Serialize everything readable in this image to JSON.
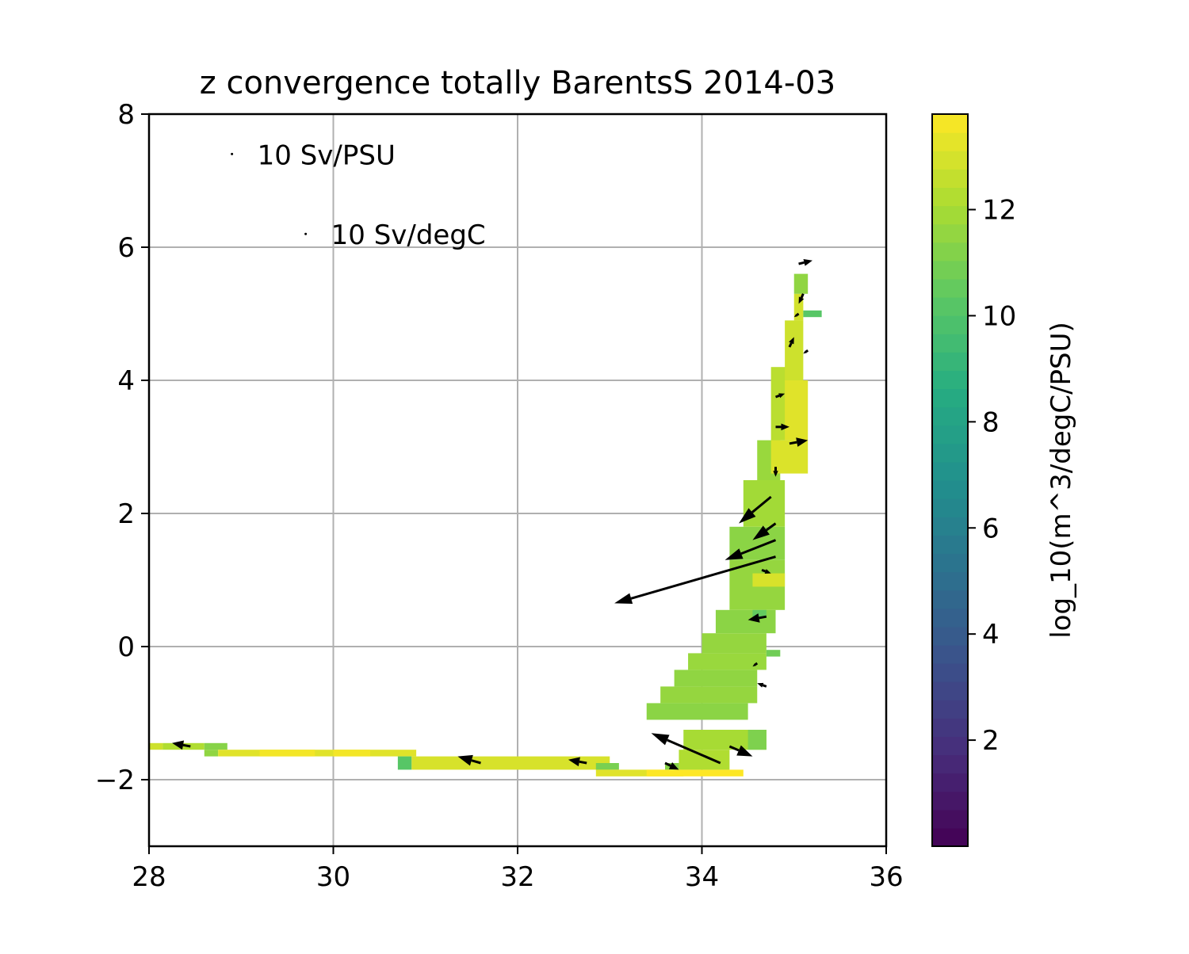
{
  "chart_data": {
    "type": "heatmap",
    "title": "z convergence totally BarentsS 2014-03",
    "xlabel": "",
    "ylabel": "",
    "xlim": [
      28,
      36
    ],
    "ylim": [
      -3,
      8
    ],
    "xticks": [
      "28",
      "30",
      "32",
      "34",
      "36"
    ],
    "yticks": [
      "8",
      "6",
      "4",
      "2",
      "0",
      "−2"
    ],
    "grid": true,
    "colorbar": {
      "label": "log_10(m^3/degC/PSU)",
      "range": [
        0,
        13.8
      ],
      "ticks": [
        "12",
        "10",
        "8",
        "6",
        "4",
        "2"
      ],
      "colormap": "viridis"
    },
    "quiver_keys": [
      {
        "label": "10 Sv/PSU",
        "x": 28.9,
        "y": 7.4
      },
      {
        "label": "10 Sv/degC",
        "x": 29.7,
        "y": 6.2
      }
    ],
    "cells": [
      [
        28.0,
        28.15,
        -1.55,
        -1.45,
        12.8
      ],
      [
        28.15,
        28.6,
        -1.55,
        -1.45,
        12.2
      ],
      [
        28.6,
        28.85,
        -1.55,
        -1.45,
        11.3
      ],
      [
        28.6,
        28.75,
        -1.65,
        -1.55,
        11.5
      ],
      [
        28.75,
        30.9,
        -1.65,
        -1.55,
        13.2
      ],
      [
        29.2,
        29.8,
        -1.65,
        -1.55,
        13.6
      ],
      [
        30.0,
        30.4,
        -1.65,
        -1.55,
        13.6
      ],
      [
        30.7,
        30.85,
        -1.85,
        -1.65,
        10.2
      ],
      [
        30.85,
        33.0,
        -1.85,
        -1.65,
        13.0
      ],
      [
        32.85,
        33.1,
        -1.85,
        -1.75,
        11.0
      ],
      [
        32.85,
        33.8,
        -1.95,
        -1.85,
        13.2
      ],
      [
        33.4,
        34.45,
        -1.95,
        -1.85,
        13.8
      ],
      [
        33.75,
        34.3,
        -1.85,
        -1.55,
        12.2
      ],
      [
        33.6,
        33.75,
        -1.85,
        -1.75,
        11.3
      ],
      [
        33.8,
        34.7,
        -1.55,
        -1.25,
        12.0
      ],
      [
        34.5,
        34.7,
        -1.55,
        -1.25,
        11.1
      ],
      [
        33.4,
        34.5,
        -1.1,
        -0.85,
        11.4
      ],
      [
        33.55,
        34.6,
        -0.85,
        -0.6,
        11.6
      ],
      [
        33.7,
        34.6,
        -0.6,
        -0.35,
        11.5
      ],
      [
        33.85,
        34.7,
        -0.35,
        -0.1,
        11.7
      ],
      [
        34.0,
        34.7,
        -0.1,
        0.2,
        11.6
      ],
      [
        34.15,
        34.8,
        0.2,
        0.55,
        11.4
      ],
      [
        34.3,
        34.9,
        0.55,
        1.3,
        11.6
      ],
      [
        34.55,
        34.9,
        0.9,
        1.1,
        13.0
      ],
      [
        34.3,
        34.9,
        1.3,
        1.8,
        11.4
      ],
      [
        34.45,
        34.9,
        1.8,
        2.5,
        11.9
      ],
      [
        34.6,
        34.85,
        2.5,
        3.1,
        11.7
      ],
      [
        34.75,
        35.15,
        2.6,
        3.1,
        13.1
      ],
      [
        34.75,
        35.0,
        3.1,
        4.2,
        12.4
      ],
      [
        34.9,
        35.15,
        3.1,
        4.0,
        13.2
      ],
      [
        34.9,
        35.1,
        4.0,
        4.9,
        12.8
      ],
      [
        35.0,
        35.1,
        4.9,
        5.3,
        12.9
      ],
      [
        35.0,
        35.15,
        5.3,
        5.6,
        11.5
      ],
      [
        35.1,
        35.3,
        4.95,
        5.05,
        10.2
      ],
      [
        34.7,
        34.85,
        -0.15,
        -0.05,
        10.8
      ],
      [
        34.55,
        34.7,
        0.45,
        0.55,
        10.5
      ]
    ],
    "arrows": [
      [
        34.8,
        1.35,
        33.05,
        0.65
      ],
      [
        34.8,
        1.6,
        34.25,
        1.3
      ],
      [
        34.8,
        1.85,
        34.55,
        1.6
      ],
      [
        34.75,
        2.25,
        34.4,
        1.85
      ],
      [
        34.2,
        -1.75,
        33.45,
        -1.3
      ],
      [
        34.3,
        -1.5,
        34.55,
        -1.65
      ],
      [
        33.6,
        -1.75,
        33.75,
        -1.85
      ],
      [
        28.45,
        -1.5,
        28.25,
        -1.45
      ],
      [
        31.6,
        -1.75,
        31.35,
        -1.65
      ],
      [
        32.75,
        -1.75,
        32.55,
        -1.7
      ],
      [
        34.8,
        3.75,
        34.9,
        3.8
      ],
      [
        34.8,
        3.3,
        34.95,
        3.3
      ],
      [
        34.95,
        3.05,
        35.15,
        3.1
      ],
      [
        34.8,
        2.7,
        34.8,
        2.55
      ],
      [
        34.95,
        4.5,
        35.0,
        4.65
      ],
      [
        35.05,
        5.0,
        35.0,
        4.95
      ],
      [
        35.05,
        5.75,
        35.2,
        5.8
      ],
      [
        35.1,
        5.3,
        35.05,
        5.15
      ],
      [
        34.65,
        1.15,
        34.75,
        1.1
      ],
      [
        34.7,
        0.45,
        34.5,
        0.4
      ],
      [
        34.6,
        -0.25,
        34.55,
        -0.3
      ],
      [
        34.7,
        -0.6,
        34.6,
        -0.55
      ],
      [
        35.15,
        4.45,
        35.1,
        4.4
      ]
    ]
  }
}
